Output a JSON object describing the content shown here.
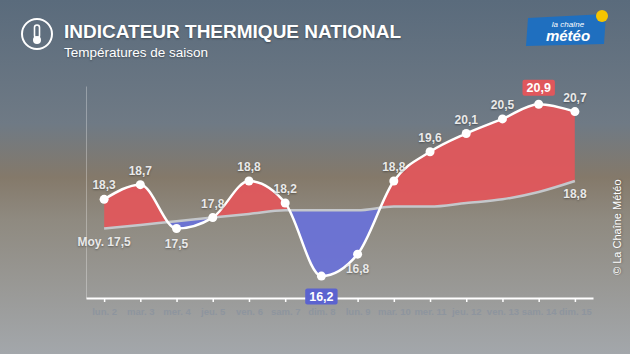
{
  "chart_data": {
    "type": "line",
    "title": "INDICATEUR THERMIQUE NATIONAL",
    "subtitle": "Températures de saison",
    "annotations": [
      "la chaîne",
      "météo",
      "© La Chaîne Météo"
    ],
    "categories": [
      "lun. 2",
      "mar. 3",
      "mer. 4",
      "jeu. 5",
      "ven. 6",
      "sam. 7",
      "dim. 8",
      "lun. 9",
      "mar. 10",
      "mer. 11",
      "jeu. 12",
      "ven. 13",
      "sam. 14",
      "dim. 15"
    ],
    "series": [
      {
        "color": "#ffffff",
        "marker": "circle",
        "line_style": "solid",
        "values": [
          18.3,
          18.7,
          17.5,
          17.8,
          18.8,
          18.2,
          16.2,
          16.8,
          18.8,
          19.6,
          20.1,
          20.5,
          20.9,
          20.7
        ],
        "value_labels": [
          "18,3",
          "18,7",
          "17,5",
          "17,8",
          "18,8",
          "18,2",
          "16,2",
          "16,8",
          "18,8",
          "19,6",
          "20,1",
          "20,5",
          "20,9",
          "20,7"
        ]
      },
      {
        "color": "#c4c7cb",
        "line_style": "solid",
        "values": [
          17.5,
          17.6,
          17.7,
          17.8,
          17.9,
          18.0,
          18.0,
          18.0,
          18.1,
          18.1,
          18.2,
          18.3,
          18.5,
          18.8
        ],
        "value_labels": [
          "Moy. 17,5",
          null,
          null,
          null,
          null,
          null,
          null,
          null,
          null,
          null,
          null,
          null,
          null,
          "18,8"
        ]
      }
    ],
    "ylim": [
      15.6,
      21.4
    ],
    "yticks": [],
    "tick_labels": "x",
    "grid": false,
    "data_labels": true
  }
}
